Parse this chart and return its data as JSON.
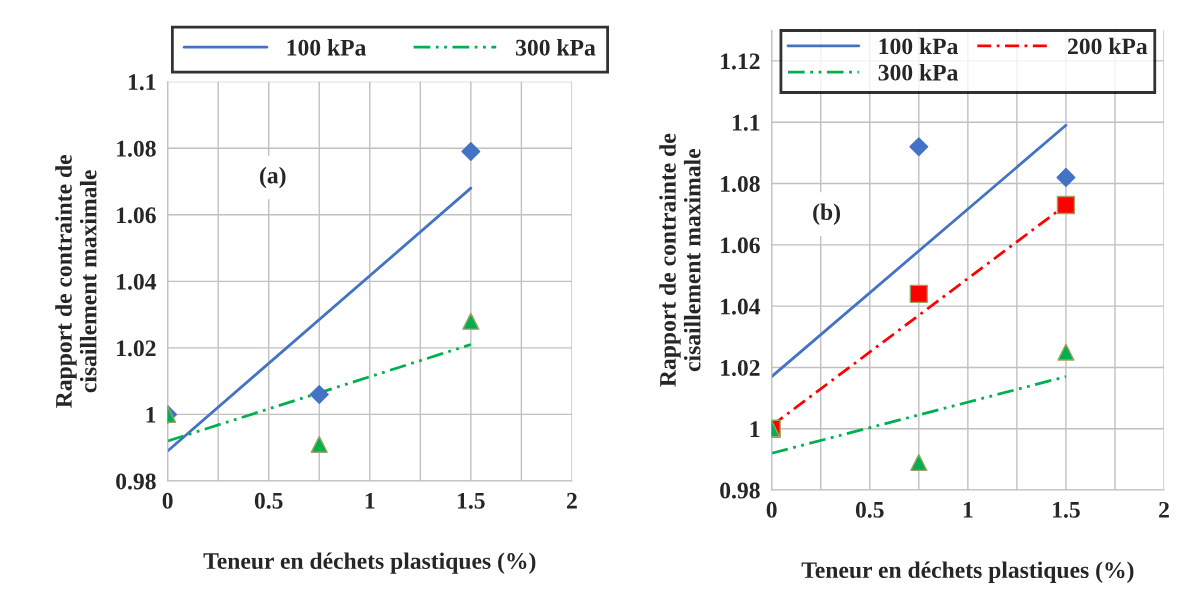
{
  "chart_data": [
    {
      "type": "scatter",
      "xlabel": "Teneur en déchets plastiques (%)",
      "ylabel": "Rapport de contrainte de\ncisaillement maximale",
      "annotations": [
        "(a)"
      ],
      "xlim": [
        0,
        2
      ],
      "xticks": [
        0,
        {
          "value": 0.25,
          "label": null
        },
        0.5,
        {
          "value": 0.75,
          "label": null
        },
        1,
        {
          "value": 1.25,
          "label": null
        },
        1.5,
        {
          "value": 1.75,
          "label": null
        },
        2
      ],
      "ylim": [
        0.98,
        1.1
      ],
      "yticks": [
        0.98,
        1,
        1.02,
        1.04,
        1.06,
        1.08,
        1.1
      ],
      "grid": true,
      "legend": "top",
      "series": [
        {
          "marker": "diamond",
          "color": "#4472c4",
          "x": [
            0,
            0.75,
            1.5
          ],
          "values": [
            1.0,
            1.006,
            1.079
          ]
        },
        {
          "marker": "triangle",
          "color": "#00b050",
          "x": [
            0,
            0.75,
            1.5
          ],
          "values": [
            1.0,
            0.991,
            1.028
          ]
        },
        {
          "type": "line",
          "name": "100 kPa",
          "color": "#4472c4",
          "line_style": "solid",
          "x": [
            0,
            1.5
          ],
          "values": [
            0.989,
            1.068
          ]
        },
        {
          "type": "line",
          "name": "300 kPa",
          "color": "#00b050",
          "line_style": "dashdotdot",
          "x": [
            0,
            1.5
          ],
          "values": [
            0.992,
            1.021
          ]
        }
      ]
    },
    {
      "type": "scatter",
      "xlabel": "Teneur en déchets plastiques (%)",
      "ylabel": "Rapport de contrainte de\ncisaillement maximale",
      "annotations": [
        "(b)"
      ],
      "xlim": [
        0,
        2
      ],
      "xticks": [
        0,
        {
          "value": 0.25,
          "label": null
        },
        0.5,
        {
          "value": 0.75,
          "label": null
        },
        1,
        {
          "value": 1.25,
          "label": null
        },
        1.5,
        {
          "value": 1.75,
          "label": null
        },
        2
      ],
      "ylim": [
        0.98,
        1.13
      ],
      "yticks": [
        0.98,
        1,
        1.02,
        1.04,
        1.06,
        1.08,
        1.1,
        1.12
      ],
      "grid": true,
      "legend": "upper center",
      "series": [
        {
          "marker": "diamond",
          "color": "#4472c4",
          "x": [
            0.75,
            1.5
          ],
          "values": [
            1.092,
            1.082
          ]
        },
        {
          "marker": "square",
          "color": "#ff0000",
          "x": [
            0,
            0.75,
            1.5
          ],
          "values": [
            1.0,
            1.044,
            1.073
          ]
        },
        {
          "marker": "triangle",
          "color": "#00b050",
          "x": [
            0,
            0.75,
            1.5
          ],
          "values": [
            1.0,
            0.989,
            1.025
          ]
        },
        {
          "type": "line",
          "name": "100 kPa",
          "color": "#4472c4",
          "line_style": "solid",
          "x": [
            0,
            1.5
          ],
          "values": [
            1.017,
            1.099
          ]
        },
        {
          "type": "line",
          "name": "200 kPa",
          "color": "#ff0000",
          "line_style": "dashdot",
          "x": [
            0,
            1.5
          ],
          "values": [
            1.001,
            1.073
          ]
        },
        {
          "type": "line",
          "name": "300 kPa",
          "color": "#00b050",
          "line_style": "dashdotdot",
          "x": [
            0,
            1.5
          ],
          "values": [
            0.992,
            1.017
          ]
        }
      ]
    }
  ]
}
